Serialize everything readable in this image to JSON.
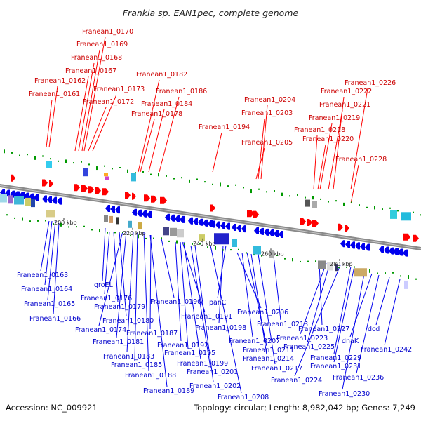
{
  "title": "Frankia sp. EAN1pec, complete genome",
  "footer": {
    "accession": "Accession: NC_009921",
    "summary": "Topology: circular; Length: 8,982,042 bp; Genes: 7,249"
  },
  "colors": {
    "forward": "#ff0000",
    "reverse": "#0000ee",
    "forward_label": "#cc0000",
    "reverse_label": "#0000cc",
    "backbone": "#808080",
    "tick": "#009900"
  },
  "scale_ticks": [
    {
      "label": "200 kbp"
    },
    {
      "label": "220 kbp"
    },
    {
      "label": "240 kbp"
    },
    {
      "label": "260 kbp"
    },
    {
      "label": "280 kbp"
    }
  ],
  "top_labels": [
    {
      "text": "Franean1_0170"
    },
    {
      "text": "Franean1_0169"
    },
    {
      "text": "Franean1_0168"
    },
    {
      "text": "Franean1_0167"
    },
    {
      "text": "Franean1_0162"
    },
    {
      "text": "Franean1_0161"
    },
    {
      "text": "Franean1_0173"
    },
    {
      "text": "Franean1_0172"
    },
    {
      "text": "Franean1_0182"
    },
    {
      "text": "Franean1_0186"
    },
    {
      "text": "Franean1_0184"
    },
    {
      "text": "Franean1_0178"
    },
    {
      "text": "Franean1_0194"
    },
    {
      "text": "Franean1_0204"
    },
    {
      "text": "Franean1_0203"
    },
    {
      "text": "Franean1_0205"
    },
    {
      "text": "Franean1_0226"
    },
    {
      "text": "Franean1_0222"
    },
    {
      "text": "Franean1_0221"
    },
    {
      "text": "Franean1_0219"
    },
    {
      "text": "Franean1_0218"
    },
    {
      "text": "Franean1_0220"
    },
    {
      "text": "Franean1_0228"
    }
  ],
  "bottom_labels": [
    {
      "text": "Franean1_0163"
    },
    {
      "text": "Franean1_0164"
    },
    {
      "text": "Franean1_0165"
    },
    {
      "text": "Franean1_0166"
    },
    {
      "text": "groEL"
    },
    {
      "text": "Franean1_0176"
    },
    {
      "text": "Franean1_0179"
    },
    {
      "text": "Franean1_0180"
    },
    {
      "text": "Franean1_0174"
    },
    {
      "text": "Franean1_0181"
    },
    {
      "text": "Franean1_0183"
    },
    {
      "text": "Franean1_0185"
    },
    {
      "text": "Franean1_0188"
    },
    {
      "text": "Franean1_0189"
    },
    {
      "text": "Franean1_0187"
    },
    {
      "text": "Franean1_0190"
    },
    {
      "text": "Franean1_0191"
    },
    {
      "text": "Franean1_0192"
    },
    {
      "text": "Franean1_0195"
    },
    {
      "text": "Franean1_0199"
    },
    {
      "text": "Franean1_0201"
    },
    {
      "text": "Franean1_0202"
    },
    {
      "text": "Franean1_0208"
    },
    {
      "text": "panC"
    },
    {
      "text": "Franean1_0198"
    },
    {
      "text": "Franean1_0206"
    },
    {
      "text": "Franean1_0207"
    },
    {
      "text": "Franean1_0211"
    },
    {
      "text": "Franean1_0214"
    },
    {
      "text": "Franean1_0217"
    },
    {
      "text": "Franean1_0213"
    },
    {
      "text": "Franean1_0227"
    },
    {
      "text": "Franean1_0223"
    },
    {
      "text": "Franean1_0225"
    },
    {
      "text": "Franean1_0224"
    },
    {
      "text": "Franean1_0229"
    },
    {
      "text": "Franean1_0231"
    },
    {
      "text": "Franean1_0230"
    },
    {
      "text": "dnaK"
    },
    {
      "text": "Franean1_0236"
    },
    {
      "text": "dcd"
    },
    {
      "text": "Franean1_0242"
    }
  ]
}
